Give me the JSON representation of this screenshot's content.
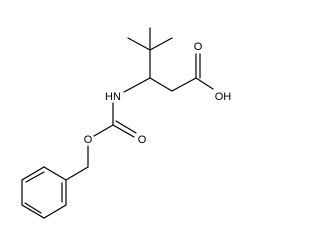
{
  "atoms": [
    {
      "label": "O"
    },
    {
      "label": "OH"
    },
    {
      "label": "HN"
    },
    {
      "label": "O"
    },
    {
      "label": "O"
    }
  ]
}
